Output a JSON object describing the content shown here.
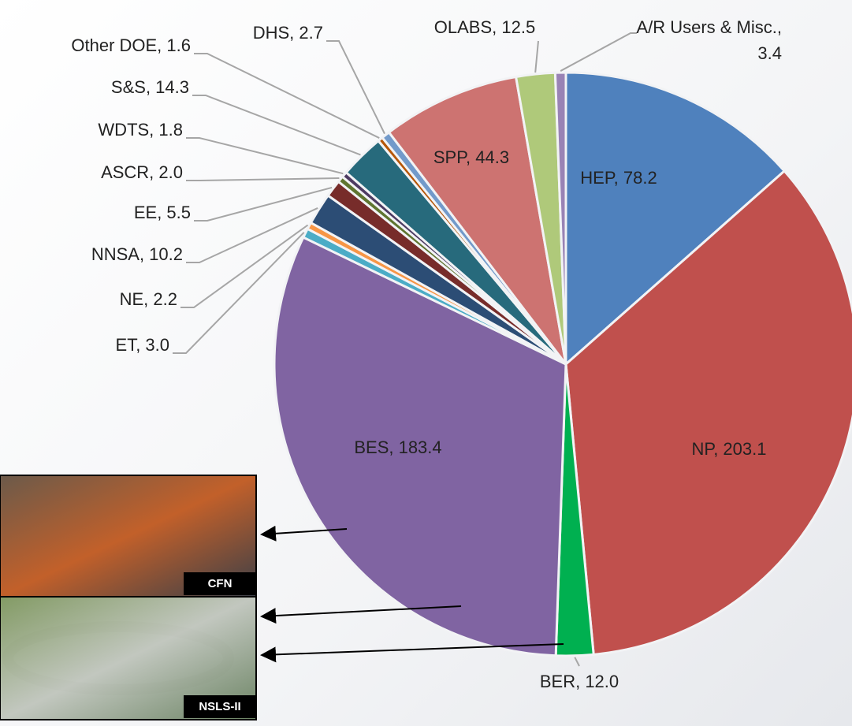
{
  "chart_data": {
    "type": "pie",
    "values": [
      78.2,
      203.1,
      12.0,
      183.4,
      3.0,
      2.2,
      10.2,
      5.5,
      2.0,
      1.8,
      14.3,
      1.6,
      2.7,
      44.3,
      12.5,
      3.4
    ],
    "value_labels": [
      "HEP, 78.2",
      "NP, 203.1",
      "BER, 12.0",
      "BES, 183.4",
      "ET,  3.0",
      "NE,  2.2",
      "NNSA,  10.2",
      "EE,  5.5",
      "ASCR,  2.0",
      "WDTS,  1.8",
      "S&S,  14.3",
      "Other DOE,  1.6",
      "DHS,  2.7",
      "SPP, 44.3",
      "OLABS,  12.5",
      "A/R Users & Misc.,  3.4"
    ],
    "colors": [
      "#4f81bd",
      "#c0504d",
      "#00b050",
      "#8064a2",
      "#4bacc6",
      "#f79646",
      "#2c4d75",
      "#772c2a",
      "#5f7530",
      "#4d3b62",
      "#276a7c",
      "#b65708",
      "#729aca",
      "#cd7371",
      "#afc97a",
      "#9983b5"
    ]
  },
  "photos": {
    "labels": [
      "CFN",
      "NSLS-II"
    ]
  }
}
